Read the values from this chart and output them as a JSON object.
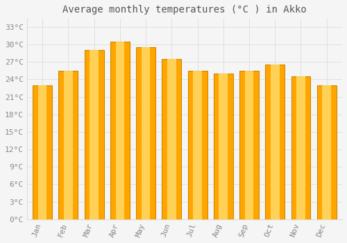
{
  "title": "Average monthly temperatures (°C ) in Akko",
  "months": [
    "Jan",
    "Feb",
    "Mar",
    "Apr",
    "May",
    "Jun",
    "Jul",
    "Aug",
    "Sep",
    "Oct",
    "Nov",
    "Dec"
  ],
  "temperatures": [
    23.0,
    25.5,
    29.0,
    30.5,
    29.5,
    27.5,
    25.5,
    25.0,
    25.5,
    26.5,
    24.5,
    23.0
  ],
  "bar_color_main": "#FFA500",
  "bar_color_light": "#FFD966",
  "bar_edge_color": "#CC8800",
  "background_color": "#F5F5F5",
  "grid_color": "#DDDDDD",
  "yticks": [
    0,
    3,
    6,
    9,
    12,
    15,
    18,
    21,
    24,
    27,
    30,
    33
  ],
  "ylim": [
    0,
    34.5
  ],
  "title_fontsize": 10,
  "tick_fontsize": 8,
  "tick_color": "#888888",
  "title_color": "#555555",
  "font_family": "monospace",
  "bar_width": 0.75
}
